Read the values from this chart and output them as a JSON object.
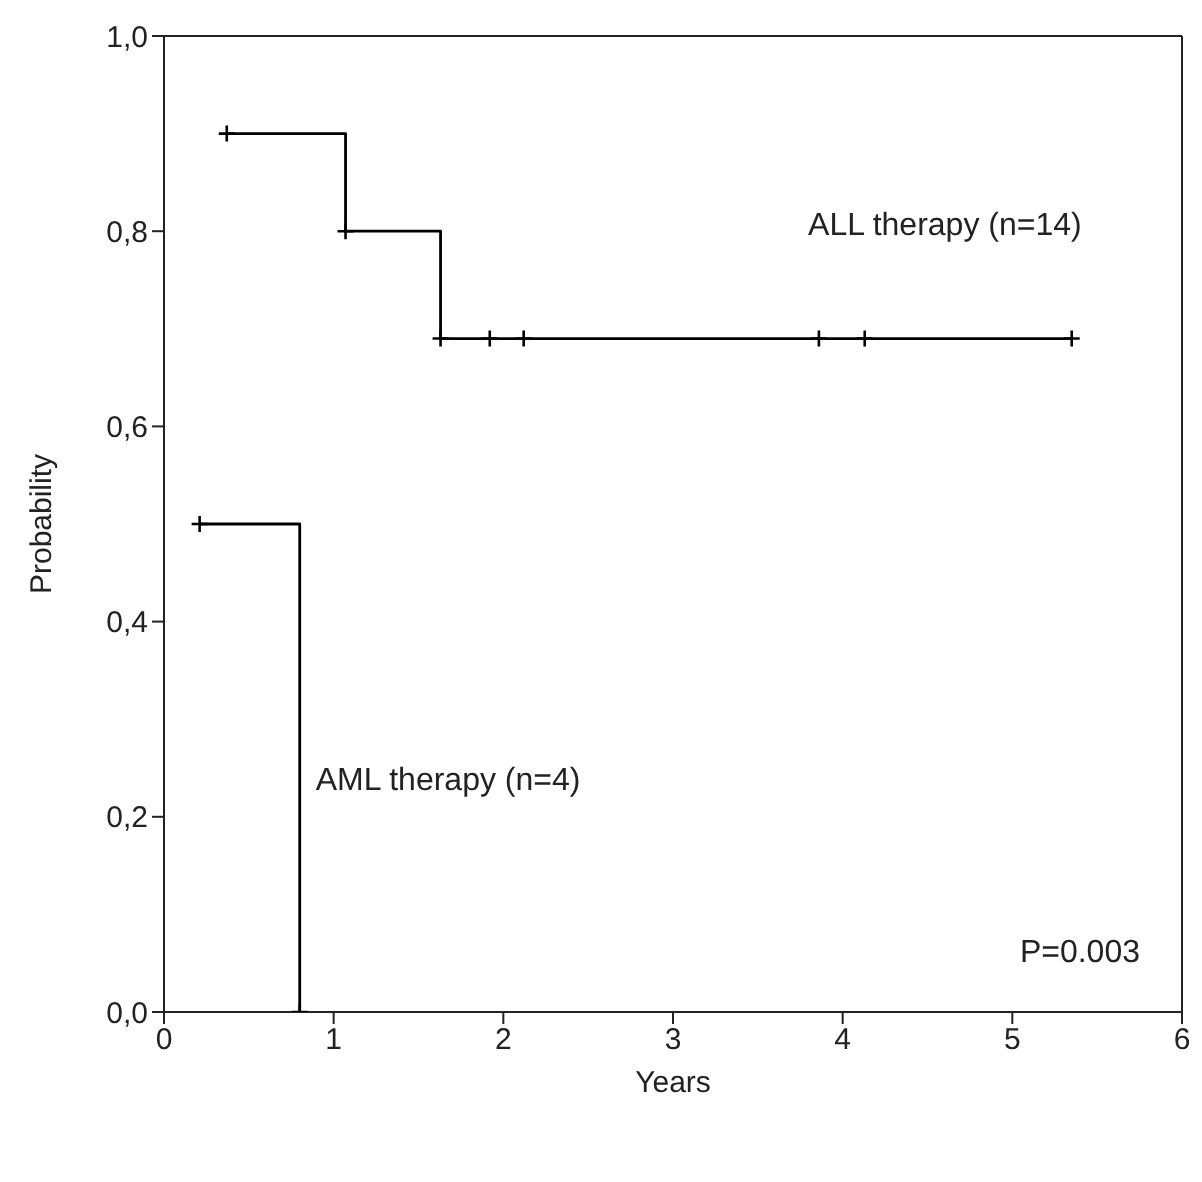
{
  "chart_data": {
    "type": "step",
    "xlabel": "Years",
    "ylabel": "Probability",
    "xlim": [
      0,
      6
    ],
    "xticks": [
      0,
      1,
      2,
      3,
      4,
      5,
      6
    ],
    "ylim": [
      0,
      1
    ],
    "yticks": [
      {
        "value": 0,
        "label": "0,0"
      },
      {
        "value": 0.2,
        "label": "0,2"
      },
      {
        "value": 0.4,
        "label": "0,4"
      },
      {
        "value": 0.6,
        "label": "0,6"
      },
      {
        "value": 0.8,
        "label": "0,8"
      },
      {
        "value": 1,
        "label": "1,0"
      }
    ],
    "marker": "cross",
    "series": [
      {
        "name": "ALL therapy (n=14)",
        "color": "#000000",
        "x": [
          0.37,
          1.07,
          1.63,
          1.92,
          2.12,
          3.86,
          4.13,
          5.35
        ],
        "values": [
          0.9,
          0.8,
          0.69,
          0.69,
          0.69,
          0.69,
          0.69,
          0.69
        ]
      },
      {
        "name": "AML therapy (n=4)",
        "color": "#000000",
        "x": [
          0.21,
          0.8
        ],
        "values": [
          0.5,
          0
        ]
      }
    ],
    "annotations": [
      "P=0.003"
    ]
  }
}
